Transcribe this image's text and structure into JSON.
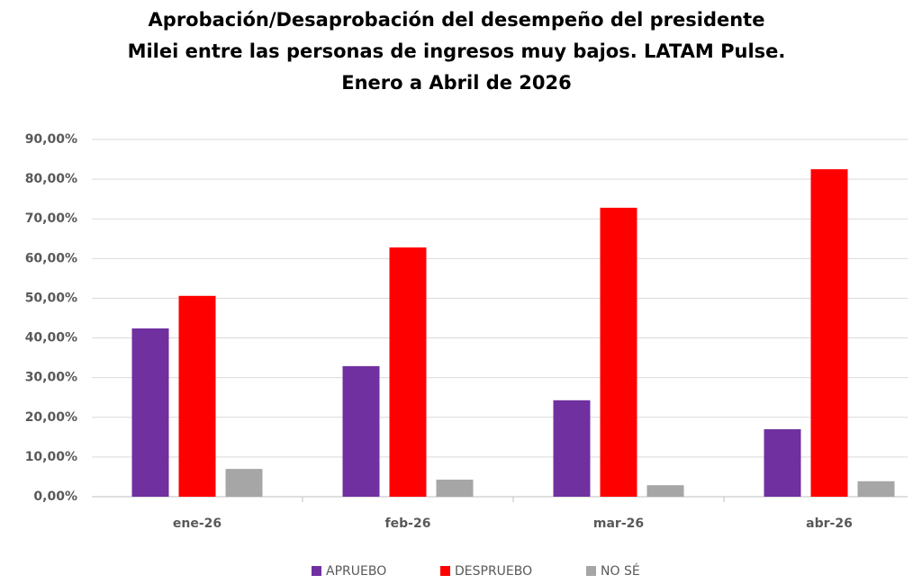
{
  "chart_data": {
    "type": "bar",
    "title": [
      "Aprobación/Desaprobación del desempeño del presidente",
      "Milei entre las personas de ingresos muy bajos. LATAM Pulse.",
      "Enero a Abril de 2026"
    ],
    "categories": [
      "ene-26",
      "feb-26",
      "mar-26",
      "abr-26"
    ],
    "series": [
      {
        "name": "APRUEBO",
        "color": "#7030a0",
        "values": [
          42.4,
          32.9,
          24.3,
          17.0
        ]
      },
      {
        "name": "DESPRUEBO",
        "color": "#ff0000",
        "values": [
          50.6,
          62.8,
          72.8,
          82.5
        ]
      },
      {
        "name": "NO SÉ",
        "color": "#a6a6a6",
        "values": [
          7.0,
          4.3,
          2.9,
          3.9
        ]
      }
    ],
    "ylim": [
      0,
      90
    ],
    "yticks": [
      {
        "value": 0,
        "label": "0,00%"
      },
      {
        "value": 10,
        "label": "10,00%"
      },
      {
        "value": 20,
        "label": "20,00%"
      },
      {
        "value": 30,
        "label": "30,00%"
      },
      {
        "value": 40,
        "label": "40,00%"
      },
      {
        "value": 50,
        "label": "50,00%"
      },
      {
        "value": 60,
        "label": "60,00%"
      },
      {
        "value": 70,
        "label": "70,00%"
      },
      {
        "value": 80,
        "label": "80,00%"
      },
      {
        "value": 90,
        "label": "90,00%"
      }
    ],
    "grid": true,
    "legend": "bottom"
  }
}
